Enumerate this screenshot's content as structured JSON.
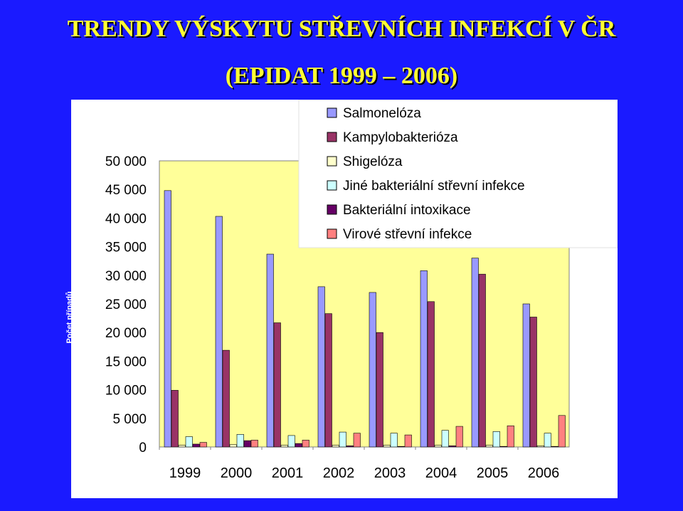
{
  "title_line1": "TRENDY VÝSKYTU  STŘEVNÍCH INFEKCÍ V ČR",
  "title_line2": "(EPIDAT 1999 – 2006)",
  "chart_data": {
    "type": "bar",
    "ylabel": "Počet případů",
    "ylim": [
      0,
      50000
    ],
    "yticks": [
      0,
      5000,
      10000,
      15000,
      20000,
      25000,
      30000,
      35000,
      40000,
      45000,
      50000
    ],
    "ytick_labels": [
      "0",
      "5 000",
      "10 000",
      "15 000",
      "20 000",
      "25 000",
      "30 000",
      "35 000",
      "40 000",
      "45 000",
      "50 000"
    ],
    "categories": [
      "1999",
      "2000",
      "2001",
      "2002",
      "2003",
      "2004",
      "2005",
      "2006"
    ],
    "legend_position": "top-right",
    "plot_bg": "#ffff99",
    "series": [
      {
        "name": "Salmonelóza",
        "color": "#9999ff",
        "values": [
          44800,
          40300,
          33700,
          28000,
          27000,
          30800,
          33000,
          25000
        ]
      },
      {
        "name": "Kampylobakterióza",
        "color": "#993366",
        "values": [
          9900,
          16900,
          21700,
          23300,
          20000,
          25400,
          30200,
          22700
        ]
      },
      {
        "name": "Shigelóza",
        "color": "#ffffcc",
        "values": [
          300,
          400,
          300,
          300,
          300,
          300,
          300,
          200
        ]
      },
      {
        "name": "Jiné bakteriální střevní infekce",
        "color": "#ccffff",
        "values": [
          1800,
          2200,
          2000,
          2600,
          2400,
          2900,
          2700,
          2400
        ]
      },
      {
        "name": "Bakteriální intoxikace",
        "color": "#660066",
        "values": [
          500,
          1100,
          600,
          200,
          100,
          200,
          100,
          100
        ]
      },
      {
        "name": "Virové střevní infekce",
        "color": "#ff8080",
        "values": [
          800,
          1200,
          1200,
          2400,
          2100,
          3600,
          3700,
          5500
        ]
      }
    ]
  }
}
